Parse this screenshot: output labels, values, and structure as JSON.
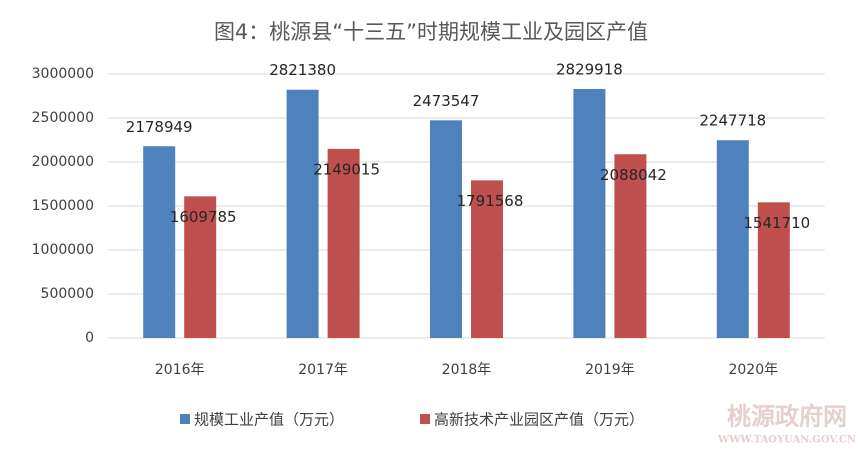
{
  "chart_data": {
    "type": "bar",
    "title": "图4：桃源县“十三五”时期规模工业及园区产值",
    "categories": [
      "2016年",
      "2017年",
      "2018年",
      "2019年",
      "2020年"
    ],
    "series": [
      {
        "name": "规模工业产值（万元）",
        "color": "#4f81bd",
        "values": [
          2178949,
          2821380,
          2473547,
          2829918,
          2247718
        ]
      },
      {
        "name": "高新技术产业园区产值（万元）",
        "color": "#c0504d",
        "values": [
          1609785,
          2149015,
          1791568,
          2088042,
          1541710
        ]
      }
    ],
    "ylim": [
      0,
      3000000
    ],
    "yticks": [
      0,
      500000,
      1000000,
      1500000,
      2000000,
      2500000,
      3000000
    ],
    "grid": true,
    "legend": "bottom",
    "watermark": {
      "name": "桃源政府网",
      "url": "WWW.TAOYUAN.GOV.CN"
    }
  }
}
